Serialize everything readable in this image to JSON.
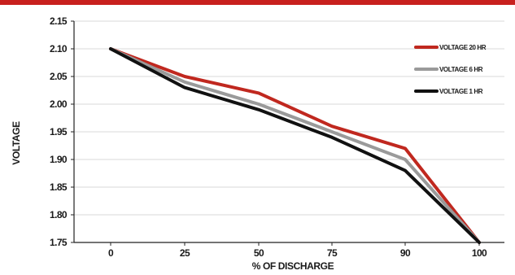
{
  "chart_data": {
    "type": "line",
    "xlabel": "% OF DISCHARGE",
    "ylabel": "VOLTAGE",
    "x": [
      "0",
      "25",
      "50",
      "75",
      "90",
      "100"
    ],
    "ylim": [
      1.75,
      2.15
    ],
    "yticks": [
      "2.15",
      "2.10",
      "2.05",
      "2.00",
      "1.95",
      "1.90",
      "1.85",
      "1.80",
      "1.75"
    ],
    "grid": true,
    "legend_position": "top-right",
    "series": [
      {
        "name": "VOLTAGE 20 HR",
        "color": "#c0281f",
        "values": [
          2.1,
          2.05,
          2.02,
          1.96,
          1.92,
          1.75
        ]
      },
      {
        "name": "VOLTAGE 6 HR",
        "color": "#9a9a9a",
        "values": [
          2.1,
          2.04,
          2.0,
          1.95,
          1.9,
          1.75
        ]
      },
      {
        "name": "VOLTAGE 1 HR",
        "color": "#111111",
        "values": [
          2.1,
          2.03,
          1.99,
          1.94,
          1.88,
          1.75
        ]
      }
    ]
  }
}
